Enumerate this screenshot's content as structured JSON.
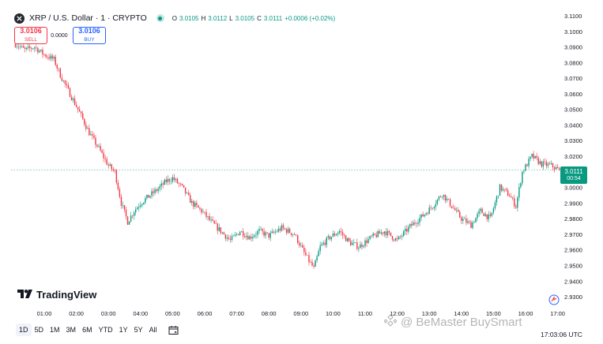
{
  "header": {
    "symbol_title": "XRP / U.S. Dollar · 1 · CRYPTO",
    "ohlc": [
      {
        "label": "O",
        "value": "3.0105"
      },
      {
        "label": "H",
        "value": "3.0112"
      },
      {
        "label": "L",
        "value": "3.0105"
      },
      {
        "label": "C",
        "value": "3.0111"
      },
      {
        "label": "",
        "value": "+0.0006 (+0.02%)"
      }
    ]
  },
  "trade": {
    "sell_price": "3.0106",
    "sell_label": "SELL",
    "spread": "0.0000",
    "buy_price": "3.0106",
    "buy_label": "BUY"
  },
  "price_tag": {
    "price": "3.0111",
    "timer": "00:54"
  },
  "logo_text": "TradingView",
  "timeframes": [
    "1D",
    "5D",
    "1M",
    "3M",
    "6M",
    "YTD",
    "1Y",
    "5Y",
    "All"
  ],
  "active_timeframe": "1D",
  "utc_label": "17:03:06 UTC",
  "watermark": "@ BeMaster BuySmart",
  "colors": {
    "up": "#089981",
    "down": "#f23645",
    "accent": "#2962ff"
  },
  "icons": {
    "symbol": "xrp-logo-icon",
    "calendar": "calendar-icon",
    "settings": "chart-settings-icon"
  },
  "chart_data": {
    "type": "candlestick",
    "title": "XRP / U.S. Dollar · 1 · CRYPTO",
    "x_tick_labels": [
      "01:00",
      "02:00",
      "03:00",
      "04:00",
      "05:00",
      "06:00",
      "07:00",
      "08:00",
      "09:00",
      "10:00",
      "11:00",
      "12:00",
      "13:00",
      "14:00",
      "15:00",
      "16:00",
      "17:00"
    ],
    "y_tick_labels": [
      "3.1100",
      "3.1000",
      "3.0900",
      "3.0800",
      "3.0700",
      "3.0600",
      "3.0500",
      "3.0400",
      "3.0300",
      "3.0200",
      "3.0100",
      "3.0000",
      "2.9900",
      "2.9800",
      "2.9700",
      "2.9600",
      "2.9500",
      "2.9400",
      "2.9300"
    ],
    "ylim": [
      2.927,
      3.1115
    ],
    "x_start_hour": 0.1,
    "x_end_hour": 17.05,
    "last_price": 3.0111,
    "grid": false,
    "price_path": [
      [
        0.1,
        3.092
      ],
      [
        0.4,
        3.088
      ],
      [
        0.7,
        3.09
      ],
      [
        1.0,
        3.085
      ],
      [
        1.3,
        3.082
      ],
      [
        1.5,
        3.072
      ],
      [
        1.8,
        3.06
      ],
      [
        2.1,
        3.048
      ],
      [
        2.4,
        3.035
      ],
      [
        2.7,
        3.025
      ],
      [
        3.0,
        3.014
      ],
      [
        3.2,
        3.01
      ],
      [
        3.4,
        2.99
      ],
      [
        3.6,
        2.978
      ],
      [
        3.8,
        2.985
      ],
      [
        4.0,
        2.99
      ],
      [
        4.3,
        2.995
      ],
      [
        4.6,
        3.0
      ],
      [
        4.8,
        3.004
      ],
      [
        5.0,
        3.006
      ],
      [
        5.3,
        3.0
      ],
      [
        5.6,
        2.99
      ],
      [
        5.9,
        2.985
      ],
      [
        6.2,
        2.978
      ],
      [
        6.5,
        2.972
      ],
      [
        6.8,
        2.966
      ],
      [
        7.1,
        2.972
      ],
      [
        7.4,
        2.968
      ],
      [
        7.7,
        2.972
      ],
      [
        8.0,
        2.969
      ],
      [
        8.4,
        2.974
      ],
      [
        8.8,
        2.97
      ],
      [
        9.1,
        2.958
      ],
      [
        9.4,
        2.948
      ],
      [
        9.6,
        2.962
      ],
      [
        9.9,
        2.968
      ],
      [
        10.2,
        2.972
      ],
      [
        10.5,
        2.965
      ],
      [
        10.8,
        2.962
      ],
      [
        11.2,
        2.968
      ],
      [
        11.6,
        2.972
      ],
      [
        12.0,
        2.966
      ],
      [
        12.4,
        2.975
      ],
      [
        12.8,
        2.982
      ],
      [
        13.1,
        2.988
      ],
      [
        13.4,
        2.996
      ],
      [
        13.7,
        2.988
      ],
      [
        14.0,
        2.98
      ],
      [
        14.3,
        2.976
      ],
      [
        14.6,
        2.985
      ],
      [
        14.9,
        2.98
      ],
      [
        15.2,
        3.0
      ],
      [
        15.5,
        2.995
      ],
      [
        15.7,
        2.988
      ],
      [
        15.9,
        3.01
      ],
      [
        16.2,
        3.02
      ],
      [
        16.5,
        3.015
      ],
      [
        16.8,
        3.014
      ],
      [
        17.05,
        3.011
      ]
    ]
  }
}
